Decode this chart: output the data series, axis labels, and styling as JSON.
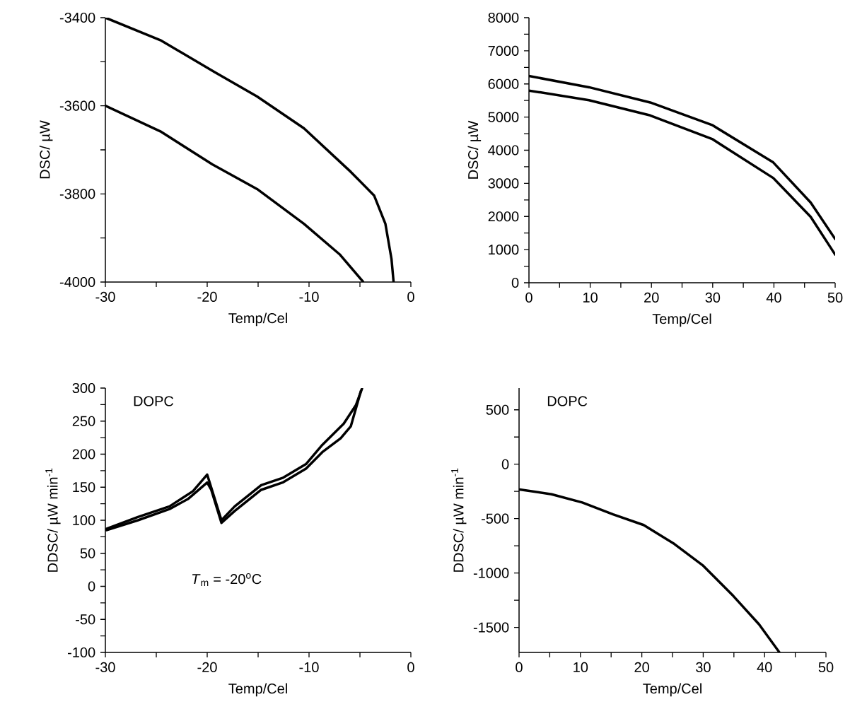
{
  "chart_data": [
    {
      "type": "line",
      "xlabel": "Temp/Cel",
      "ylabel": "DSC/ µW",
      "xlim": [
        -30,
        0
      ],
      "ylim": [
        -4000,
        -3400
      ],
      "xticks": [
        -30,
        {
          "value": -25,
          "label": null
        },
        -20,
        {
          "value": -15,
          "label": null
        },
        -10,
        {
          "value": -5,
          "label": null
        },
        0
      ],
      "yticks": [
        -4000,
        {
          "value": -3900,
          "label": null
        },
        -3800,
        {
          "value": -3700,
          "label": null
        },
        -3600,
        {
          "value": -3500,
          "label": null
        },
        -3400
      ],
      "series": [
        {
          "color": "#000000",
          "x": [
            -30,
            -24.6,
            -19.3,
            -15.1,
            -10.5,
            -5.9,
            -3.6,
            -2.5,
            -1.9,
            -1.7
          ],
          "values": [
            -3400,
            -3451,
            -3523,
            -3579,
            -3651,
            -3750,
            -3804,
            -3868,
            -3948,
            -3999
          ]
        },
        {
          "color": "#000000",
          "x": [
            -30,
            -24.6,
            -19.5,
            -15.1,
            -10.5,
            -7.0,
            -4.7
          ],
          "values": [
            -3600,
            -3658,
            -3733,
            -3789,
            -3868,
            -3937,
            -3999
          ]
        }
      ]
    },
    {
      "type": "line",
      "xlabel": "Temp/Cel",
      "ylabel": "DSC/ µW",
      "xlim": [
        0,
        50
      ],
      "ylim": [
        0,
        8000
      ],
      "xticks": [
        0,
        {
          "value": 5,
          "label": null
        },
        10,
        {
          "value": 15,
          "label": null
        },
        20,
        {
          "value": 25,
          "label": null
        },
        30,
        {
          "value": 35,
          "label": null
        },
        40,
        {
          "value": 45,
          "label": null
        },
        50
      ],
      "yticks": [
        0,
        {
          "value": 500,
          "label": null
        },
        1000,
        {
          "value": 1500,
          "label": null
        },
        2000,
        {
          "value": 2500,
          "label": null
        },
        3000,
        {
          "value": 3500,
          "label": null
        },
        4000,
        {
          "value": 4500,
          "label": null
        },
        5000,
        {
          "value": 5500,
          "label": null
        },
        6000,
        {
          "value": 6500,
          "label": null
        },
        7000,
        {
          "value": 7500,
          "label": null
        },
        8000
      ],
      "series": [
        {
          "color": "#000000",
          "x": [
            0,
            9.8,
            19.8,
            29.9,
            39.9,
            46.0,
            50
          ],
          "values": [
            6240,
            5900,
            5440,
            4760,
            3630,
            2420,
            1320
          ]
        },
        {
          "color": "#000000",
          "x": [
            0,
            9.8,
            19.8,
            29.9,
            39.9,
            46.0,
            50
          ],
          "values": [
            5800,
            5510,
            5050,
            4340,
            3160,
            1990,
            850
          ]
        }
      ]
    },
    {
      "type": "line",
      "xlabel": "Temp/Cel",
      "ylabel": "DDSC/ µW min$^{-1}$",
      "xlim": [
        -30,
        0
      ],
      "ylim": [
        -100,
        300
      ],
      "xticks": [
        -30,
        {
          "value": -25,
          "label": null
        },
        -20,
        {
          "value": -15,
          "label": null
        },
        -10,
        {
          "value": -5,
          "label": null
        },
        0
      ],
      "yticks": [
        -100,
        {
          "value": -75,
          "label": null
        },
        -50,
        {
          "value": -25,
          "label": null
        },
        0,
        {
          "value": 25,
          "label": null
        },
        50,
        {
          "value": 75,
          "label": null
        },
        100,
        {
          "value": 125,
          "label": null
        },
        150,
        {
          "value": 175,
          "label": null
        },
        200,
        {
          "value": 225,
          "label": null
        },
        250,
        {
          "value": 275,
          "label": null
        },
        300
      ],
      "annotations": [
        "DOPC",
        "*T*$_{m}$ = -20$^{o}$C"
      ],
      "series": [
        {
          "color": "#000000",
          "x": [
            -29.9,
            -26.8,
            -23.7,
            -21.4,
            -20.0,
            -18.6,
            -17.3,
            -14.7,
            -12.6,
            -10.3,
            -8.7,
            -6.6,
            -5.4,
            -4.8
          ],
          "values": [
            87,
            105,
            121,
            144,
            169,
            100,
            121,
            153,
            164,
            185,
            214,
            246,
            274,
            299
          ]
        },
        {
          "color": "#000000",
          "x": [
            -29.9,
            -26.8,
            -23.7,
            -21.9,
            -20.0,
            -19.6,
            -18.6,
            -17.3,
            -14.7,
            -12.6,
            -10.3,
            -8.7,
            -6.9,
            -5.9,
            -4.9
          ],
          "values": [
            85,
            100,
            117,
            132,
            157,
            146,
            96,
            114,
            146,
            157,
            178,
            203,
            224,
            242,
            296
          ]
        }
      ]
    },
    {
      "type": "line",
      "xlabel": "Temp/Cel",
      "ylabel": "DDSC/ µW min$^{-1}$",
      "xlim": [
        0,
        50
      ],
      "ylim": [
        -1730,
        700
      ],
      "xticks": [
        0,
        {
          "value": 5,
          "label": null
        },
        10,
        {
          "value": 15,
          "label": null
        },
        20,
        {
          "value": 25,
          "label": null
        },
        30,
        {
          "value": 35,
          "label": null
        },
        40,
        {
          "value": 45,
          "label": null
        },
        50
      ],
      "yticks": [
        -1500,
        {
          "value": -1250,
          "label": null
        },
        -1000,
        {
          "value": -750,
          "label": null
        },
        -500,
        {
          "value": -250,
          "label": null
        },
        0,
        {
          "value": 250,
          "label": null
        },
        500
      ],
      "annotations": [
        "DOPC"
      ],
      "series": [
        {
          "color": "#000000",
          "x": [
            0.1,
            5.3,
            10.3,
            15.3,
            20.3,
            25.3,
            29.9,
            34.9,
            39.1,
            42.4
          ],
          "values": [
            -233,
            -276,
            -352,
            -461,
            -559,
            -733,
            -928,
            -1211,
            -1472,
            -1728
          ]
        }
      ]
    }
  ]
}
